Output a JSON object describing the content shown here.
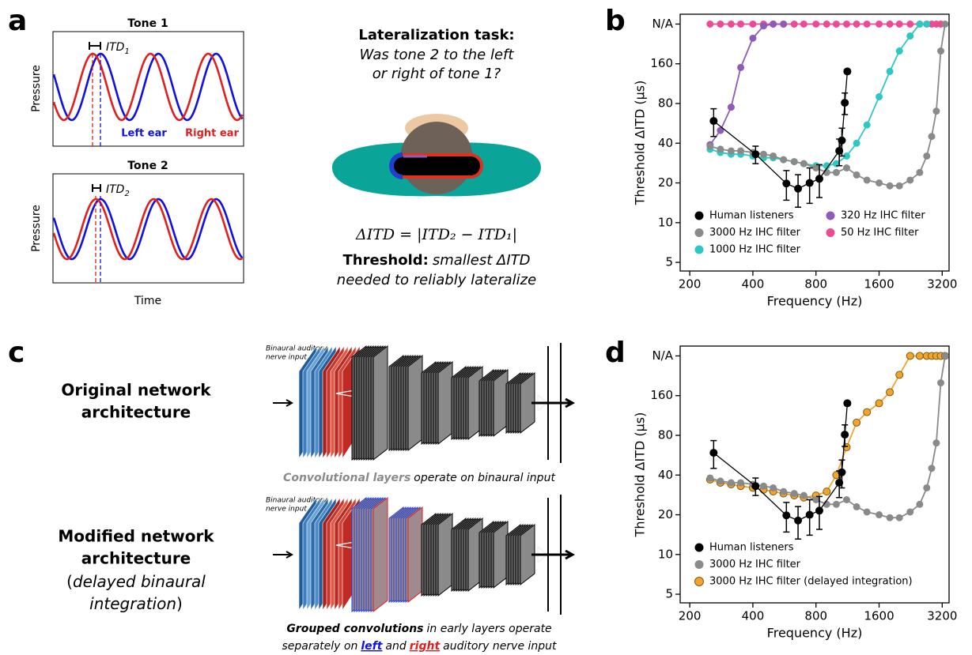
{
  "panel_labels": [
    "a",
    "b",
    "c",
    "d"
  ],
  "panel_a": {
    "tone_plots": [
      {
        "title": "Tone 1",
        "itd": {
          "text": "ITD",
          "sub": "1"
        },
        "ylabel": "Pressure"
      },
      {
        "title": "Tone 2",
        "itd": {
          "text": "ITD",
          "sub": "2"
        },
        "ylabel": "Pressure"
      }
    ],
    "xlabel": "Time",
    "legend": [
      "Left ear",
      "Right ear"
    ],
    "task_title": "Lateralization task:",
    "task_question": [
      "Was tone 2 to the left",
      "or right of tone 1?"
    ],
    "formula": "ΔITD = |ITD₂ − ITD₁|",
    "threshold_label": "Threshold:",
    "threshold_text": [
      "smallest ΔITD",
      "needed to reliably lateralize"
    ]
  },
  "panel_c": {
    "original": {
      "input_label": [
        "Binaural auditory",
        "nerve input"
      ],
      "title": [
        "Original network",
        "architecture"
      ],
      "caption": [
        "Convolutional layers",
        "operate on binaural input"
      ]
    },
    "modified": {
      "input_label": [
        "Binaural auditory",
        "nerve input"
      ],
      "title": [
        "Modified network",
        "architecture"
      ],
      "subtitle": [
        "(",
        "delayed binaural",
        "integration",
        ")"
      ],
      "caption": [
        [
          "Grouped convolutions",
          "in early layers operate"
        ],
        [
          "separately on",
          "left",
          "and",
          "right",
          "auditory nerve input"
        ]
      ]
    }
  },
  "chart_data": [
    {
      "type": "line",
      "xlabel": "Frequency (Hz)",
      "ylabel": "Threshold ΔITD (μs)",
      "xscale": "log",
      "yscale": "log",
      "xlim": [
        180,
        3450
      ],
      "ylim": [
        4.3,
        380
      ],
      "xticks": [
        200,
        400,
        800,
        1600,
        3200
      ],
      "yticks": [
        5,
        10,
        20,
        40,
        80,
        160,
        {
          "value": 320,
          "label": "N/A"
        }
      ],
      "legend": "lower left",
      "legend_columns": 2,
      "series": [
        {
          "name": "Human listeners",
          "color": "#000000",
          "x": [
            260,
            412,
            578,
            657,
            746,
            830,
            1033,
            1063,
            1098,
            1129
          ],
          "values": [
            59,
            33,
            19.8,
            18.1,
            20,
            21.5,
            35,
            42,
            81,
            140
          ],
          "errors": [
            14,
            5,
            5,
            5,
            6,
            6,
            8,
            10,
            15,
            5
          ]
        },
        {
          "name": "3000 Hz IHC filter",
          "color": "#8a8a8a",
          "x": [
            250,
            280,
            315,
            350,
            400,
            450,
            500,
            560,
            630,
            700,
            800,
            900,
            1000,
            1120,
            1250,
            1400,
            1600,
            1800,
            2000,
            2250,
            2500,
            2700,
            2850,
            3000,
            3150,
            3300
          ],
          "values": [
            38,
            36,
            35,
            35,
            34,
            33,
            32,
            30,
            29,
            28,
            26,
            24,
            24,
            26,
            23,
            21,
            20,
            19,
            19,
            21,
            24,
            32,
            45,
            70,
            200,
            320
          ]
        },
        {
          "name": "1000 Hz IHC filter",
          "color": "#2ec8c4",
          "x": [
            250,
            280,
            315,
            350,
            400,
            450,
            500,
            560,
            630,
            700,
            800,
            900,
            1000,
            1120,
            1250,
            1400,
            1600,
            1800,
            2000,
            2250,
            2500,
            2700
          ],
          "values": [
            36,
            34,
            33,
            33,
            32,
            31,
            31,
            30,
            29,
            28,
            27,
            27,
            28,
            32,
            40,
            55,
            90,
            140,
            200,
            260,
            320,
            320
          ]
        },
        {
          "name": "320 Hz IHC filter",
          "color": "#8e5cb8",
          "x": [
            250,
            280,
            315,
            350,
            400,
            450,
            500,
            560
          ],
          "values": [
            39,
            50,
            75,
            150,
            250,
            310,
            320,
            320
          ]
        },
        {
          "name": "50 Hz IHC filter",
          "color": "#ec4a92",
          "x": [
            250,
            280,
            315,
            350,
            400,
            450,
            500,
            560,
            630,
            700,
            800,
            900,
            1000,
            1120,
            1250,
            1400,
            1600,
            1800,
            2000,
            2250,
            2500,
            2700,
            2850,
            3000,
            3150
          ],
          "values": [
            320,
            320,
            320,
            320,
            320,
            320,
            320,
            320,
            320,
            320,
            320,
            320,
            320,
            320,
            320,
            320,
            320,
            320,
            320,
            320,
            320,
            320,
            320,
            320,
            320
          ]
        }
      ]
    },
    {
      "type": "line",
      "xlabel": "Frequency (Hz)",
      "ylabel": "Threshold ΔITD (μs)",
      "xscale": "log",
      "yscale": "log",
      "xlim": [
        180,
        3450
      ],
      "ylim": [
        4.3,
        380
      ],
      "xticks": [
        200,
        400,
        800,
        1600,
        3200
      ],
      "yticks": [
        5,
        10,
        20,
        40,
        80,
        160,
        {
          "value": 320,
          "label": "N/A"
        }
      ],
      "legend": "lower left",
      "legend_columns": 1,
      "series": [
        {
          "name": "Human listeners",
          "color": "#000000",
          "x": [
            260,
            412,
            578,
            657,
            746,
            830,
            1033,
            1063,
            1098,
            1129
          ],
          "values": [
            59,
            33,
            19.8,
            18.1,
            20,
            21.5,
            35,
            42,
            81,
            140
          ],
          "errors": [
            14,
            5,
            5,
            5,
            6,
            6,
            8,
            10,
            15,
            5
          ]
        },
        {
          "name": "3000 Hz IHC filter",
          "color": "#8a8a8a",
          "x": [
            250,
            280,
            315,
            350,
            400,
            450,
            500,
            560,
            630,
            700,
            800,
            900,
            1000,
            1120,
            1250,
            1400,
            1600,
            1800,
            2000,
            2250,
            2500,
            2700,
            2850,
            3000,
            3150,
            3300
          ],
          "values": [
            38,
            36,
            35,
            35,
            34,
            33,
            32,
            30,
            29,
            28,
            26,
            24,
            24,
            26,
            23,
            21,
            20,
            19,
            19,
            21,
            24,
            32,
            45,
            70,
            200,
            320
          ]
        },
        {
          "name": "3000 Hz IHC filter (delayed integration)",
          "color": "#f2a52a",
          "edgecolor": "#7a5a18",
          "x": [
            250,
            280,
            315,
            350,
            400,
            450,
            500,
            560,
            630,
            700,
            800,
            900,
            1000,
            1120,
            1250,
            1400,
            1600,
            1800,
            2000,
            2250,
            2500,
            2700,
            2850,
            3000,
            3150,
            3300
          ],
          "values": [
            37,
            35,
            34,
            33,
            32,
            31,
            30,
            29,
            28,
            27,
            28,
            30,
            40,
            65,
            100,
            120,
            140,
            170,
            230,
            320,
            320,
            320,
            320,
            320,
            320,
            320
          ]
        }
      ]
    }
  ]
}
